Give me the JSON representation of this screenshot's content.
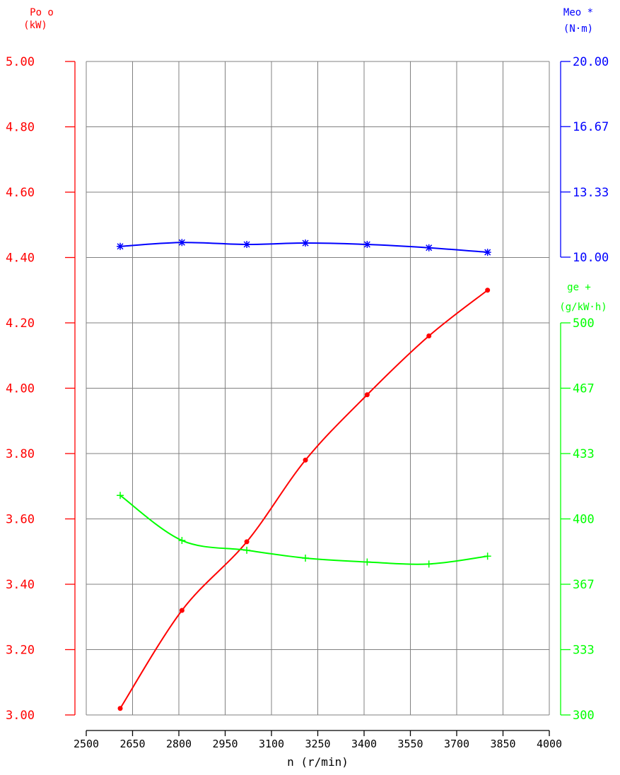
{
  "chart_data": {
    "type": "line",
    "xlabel": "n (r/min)",
    "x": {
      "range": [
        2500,
        4000
      ],
      "ticks": [
        2500,
        2650,
        2800,
        2950,
        3100,
        3250,
        3400,
        3550,
        3700,
        3850,
        4000
      ],
      "tick_labels": [
        "2500",
        "2650",
        "2800",
        "2950",
        "3100",
        "3250",
        "3400",
        "3550",
        "3700",
        "3850",
        "4000"
      ]
    },
    "grid": true,
    "axes": {
      "power": {
        "side": "left",
        "color": "#ff0000",
        "label_line1": "Po o",
        "label_line2": "(kW)",
        "range": [
          3.0,
          5.0
        ],
        "ticks": [
          3.0,
          3.2,
          3.4,
          3.6,
          3.8,
          4.0,
          4.2,
          4.4,
          4.6,
          4.8,
          5.0
        ],
        "tick_labels": [
          "3.00",
          "3.20",
          "3.40",
          "3.60",
          "3.80",
          "4.00",
          "4.20",
          "4.40",
          "4.60",
          "4.80",
          "5.00"
        ]
      },
      "torque": {
        "side": "right-top",
        "color": "#0000ff",
        "label_line1": "Meo *",
        "label_line2": "(N·m)",
        "range": [
          10.0,
          20.0
        ],
        "ticks": [
          10.0,
          13.33,
          16.67,
          20.0
        ],
        "tick_labels": [
          "10.00",
          "13.33",
          "16.67",
          "20.00"
        ]
      },
      "fuel": {
        "side": "right-bottom",
        "color": "#00ff00",
        "label_line1": "ge +",
        "label_line2": "(g/kW·h)",
        "range": [
          300,
          500
        ],
        "ticks": [
          300,
          333.33,
          366.67,
          400,
          433.33,
          466.67,
          500
        ],
        "tick_labels": [
          "300",
          "333",
          "367",
          "400",
          "433",
          "467",
          "500"
        ]
      }
    },
    "series": [
      {
        "axis": "power",
        "color": "#ff0000",
        "marker": "dot",
        "x": [
          2610,
          2810,
          3020,
          3210,
          3410,
          3610,
          3800
        ],
        "y": [
          3.02,
          3.32,
          3.53,
          3.78,
          3.98,
          4.16,
          4.3
        ]
      },
      {
        "axis": "torque",
        "color": "#0000ff",
        "marker": "star",
        "x": [
          2610,
          2810,
          3020,
          3210,
          3410,
          3610,
          3800
        ],
        "y": [
          10.55,
          10.75,
          10.65,
          10.72,
          10.65,
          10.48,
          10.25
        ]
      },
      {
        "axis": "fuel",
        "color": "#00ff00",
        "marker": "plus",
        "x": [
          2610,
          2810,
          3020,
          3210,
          3410,
          3610,
          3800
        ],
        "y": [
          412,
          389,
          384,
          380,
          378,
          377,
          381
        ]
      }
    ]
  }
}
